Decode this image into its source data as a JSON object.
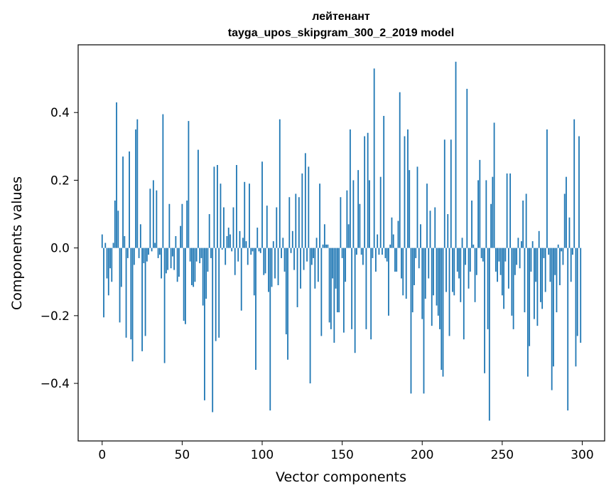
{
  "chart_data": {
    "type": "bar",
    "title": "лейтенант",
    "subtitle": "tayga_upos_skipgram_300_2_2019 model",
    "xlabel": "Vector components",
    "ylabel": "Components values",
    "xlim": [
      -15,
      314
    ],
    "ylim": [
      -0.57,
      0.6
    ],
    "xticks": [
      0,
      50,
      100,
      150,
      200,
      250,
      300
    ],
    "yticks": [
      -0.4,
      -0.2,
      0.0,
      0.2,
      0.4
    ],
    "xtick_labels": [
      "0",
      "50",
      "100",
      "150",
      "200",
      "250",
      "300"
    ],
    "ytick_labels": [
      "−0.4",
      "−0.2",
      "0.0",
      "0.2",
      "0.4"
    ],
    "grid": false,
    "bar_color": "#1f77b4",
    "values": [
      0.04,
      -0.205,
      0.015,
      -0.09,
      -0.14,
      -0.06,
      -0.1,
      0.015,
      0.14,
      0.43,
      0.11,
      -0.22,
      -0.115,
      0.27,
      0.035,
      -0.265,
      -0.03,
      0.285,
      -0.27,
      -0.335,
      -0.05,
      0.35,
      0.38,
      -0.03,
      0.07,
      -0.305,
      -0.045,
      -0.26,
      -0.04,
      -0.02,
      0.175,
      -0.01,
      0.2,
      0.015,
      0.17,
      -0.03,
      -0.02,
      -0.09,
      0.395,
      -0.34,
      -0.075,
      -0.065,
      0.13,
      -0.06,
      -0.025,
      -0.065,
      0.035,
      -0.1,
      -0.085,
      0.065,
      0.13,
      -0.215,
      -0.225,
      0.14,
      0.375,
      -0.04,
      -0.11,
      -0.115,
      -0.1,
      -0.04,
      0.29,
      -0.045,
      -0.03,
      -0.17,
      -0.45,
      -0.15,
      -0.07,
      0.1,
      -0.03,
      -0.485,
      0.24,
      -0.275,
      0.245,
      -0.265,
      0.19,
      -0.005,
      0.12,
      -0.05,
      0.035,
      0.06,
      0.04,
      -0.01,
      0.12,
      -0.08,
      0.245,
      -0.04,
      0.05,
      -0.185,
      0.03,
      0.195,
      0.02,
      -0.05,
      0.19,
      -0.02,
      -0.01,
      -0.14,
      -0.36,
      0.06,
      -0.01,
      -0.015,
      0.255,
      -0.08,
      -0.075,
      0.125,
      -0.13,
      -0.48,
      -0.115,
      0.02,
      -0.09,
      0.12,
      -0.11,
      0.38,
      -0.03,
      0.03,
      -0.07,
      -0.255,
      -0.33,
      0.15,
      -0.015,
      0.05,
      -0.065,
      0.16,
      -0.175,
      0.15,
      -0.12,
      0.22,
      -0.065,
      0.28,
      -0.04,
      0.24,
      -0.4,
      -0.05,
      -0.03,
      -0.12,
      0.03,
      -0.1,
      0.19,
      -0.26,
      0.01,
      0.07,
      0.01,
      0.01,
      -0.22,
      -0.24,
      -0.09,
      -0.28,
      -0.12,
      -0.19,
      -0.19,
      0.15,
      -0.03,
      -0.25,
      -0.1,
      0.17,
      0.07,
      0.35,
      -0.24,
      0.2,
      -0.31,
      -0.02,
      0.23,
      0.13,
      -0.02,
      -0.05,
      0.33,
      -0.24,
      0.34,
      0.2,
      -0.27,
      -0.03,
      0.53,
      -0.07,
      0.04,
      -0.02,
      0.21,
      -0.02,
      0.39,
      -0.03,
      -0.04,
      -0.2,
      0.01,
      0.09,
      0.04,
      -0.07,
      -0.07,
      0.08,
      0.46,
      -0.09,
      -0.14,
      0.33,
      -0.15,
      0.35,
      0.23,
      -0.43,
      -0.19,
      -0.11,
      -0.03,
      0.24,
      -0.06,
      0.07,
      -0.21,
      -0.43,
      -0.15,
      0.19,
      -0.09,
      0.11,
      -0.23,
      -0.14,
      0.12,
      -0.17,
      -0.2,
      -0.24,
      -0.36,
      -0.38,
      0.32,
      -0.13,
      0.1,
      -0.26,
      0.32,
      -0.13,
      -0.14,
      0.55,
      -0.07,
      -0.09,
      -0.16,
      0.03,
      -0.27,
      -0.05,
      0.47,
      -0.12,
      -0.07,
      0.14,
      0.01,
      -0.16,
      -0.08,
      0.2,
      0.26,
      -0.03,
      -0.04,
      -0.37,
      0.2,
      -0.24,
      -0.51,
      0.13,
      0.21,
      0.37,
      -0.07,
      -0.1,
      -0.04,
      -0.08,
      -0.14,
      -0.18,
      -0.04,
      0.22,
      -0.12,
      0.22,
      -0.2,
      -0.24,
      -0.08,
      -0.05,
      0.03,
      -0.06,
      0.02,
      0.14,
      -0.19,
      0.16,
      -0.38,
      -0.29,
      -0.07,
      0.02,
      -0.21,
      -0.1,
      -0.23,
      0.05,
      -0.16,
      -0.18,
      -0.03,
      -0.13,
      0.35,
      -0.02,
      -0.1,
      -0.42,
      -0.35,
      -0.08,
      -0.19,
      0.01,
      -0.11,
      -0.01,
      -0.05,
      0.16,
      0.21,
      -0.48,
      0.09,
      -0.1,
      -0.02,
      0.38,
      -0.35,
      -0.26,
      0.33,
      -0.28
    ]
  }
}
